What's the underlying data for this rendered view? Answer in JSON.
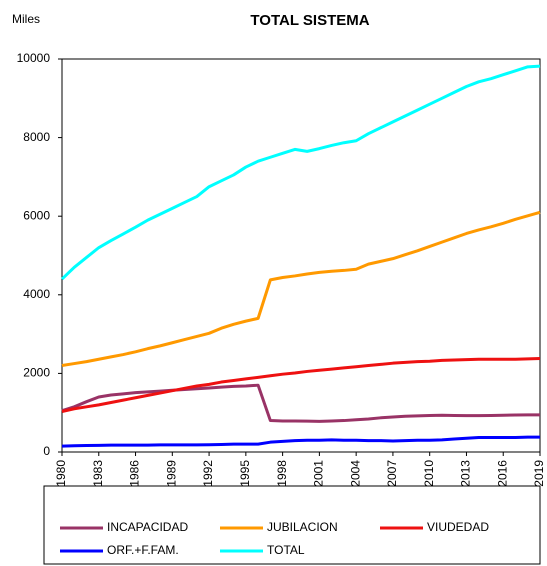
{
  "chart_data": {
    "type": "line",
    "title": "TOTAL SISTEMA",
    "y_label": "Miles",
    "x": [
      1980,
      1981,
      1982,
      1983,
      1984,
      1985,
      1986,
      1987,
      1988,
      1989,
      1990,
      1991,
      1992,
      1993,
      1994,
      1995,
      1996,
      1997,
      1998,
      1999,
      2000,
      2001,
      2002,
      2003,
      2004,
      2005,
      2006,
      2007,
      2008,
      2009,
      2010,
      2011,
      2012,
      2013,
      2014,
      2015,
      2016,
      2017,
      2018,
      2019
    ],
    "xlim": [
      1980,
      2019
    ],
    "xticks": [
      1980,
      1983,
      1986,
      1989,
      1992,
      1995,
      1998,
      2001,
      2004,
      2007,
      2010,
      2013,
      2016,
      2019
    ],
    "ylim": [
      0,
      10000
    ],
    "yticks": [
      0,
      2000,
      4000,
      6000,
      8000,
      10000
    ],
    "grid": false,
    "legend": "bottom",
    "series": [
      {
        "name": "INCAPACIDAD",
        "color": "#993366",
        "values": [
          1050,
          1150,
          1280,
          1400,
          1450,
          1480,
          1510,
          1530,
          1550,
          1570,
          1590,
          1610,
          1630,
          1650,
          1670,
          1680,
          1700,
          800,
          790,
          790,
          785,
          780,
          790,
          800,
          820,
          840,
          870,
          890,
          910,
          920,
          930,
          935,
          930,
          925,
          925,
          930,
          935,
          940,
          945,
          945
        ]
      },
      {
        "name": "JUBILACION",
        "color": "#ff9900",
        "values": [
          2200,
          2250,
          2300,
          2360,
          2420,
          2480,
          2550,
          2630,
          2700,
          2780,
          2860,
          2940,
          3020,
          3150,
          3250,
          3330,
          3400,
          4380,
          4440,
          4480,
          4530,
          4570,
          4600,
          4620,
          4650,
          4780,
          4850,
          4920,
          5020,
          5120,
          5230,
          5340,
          5450,
          5560,
          5650,
          5730,
          5820,
          5920,
          6010,
          6100
        ]
      },
      {
        "name": "VIUDEDAD",
        "color": "#ee1111",
        "values": [
          1030,
          1100,
          1150,
          1200,
          1260,
          1320,
          1380,
          1440,
          1500,
          1560,
          1620,
          1680,
          1720,
          1780,
          1820,
          1860,
          1900,
          1940,
          1980,
          2010,
          2050,
          2080,
          2110,
          2140,
          2170,
          2200,
          2230,
          2260,
          2280,
          2300,
          2310,
          2330,
          2340,
          2350,
          2360,
          2360,
          2360,
          2360,
          2370,
          2380
        ]
      },
      {
        "name": "ORF.+F.FAM.",
        "color": "#0000ff",
        "values": [
          150,
          160,
          165,
          170,
          175,
          175,
          175,
          175,
          180,
          180,
          180,
          180,
          185,
          190,
          200,
          200,
          200,
          250,
          270,
          290,
          300,
          300,
          310,
          300,
          300,
          290,
          290,
          280,
          290,
          300,
          300,
          310,
          330,
          350,
          370,
          370,
          370,
          370,
          380,
          380
        ]
      },
      {
        "name": "TOTAL",
        "color": "#00ffff",
        "values": [
          4400,
          4700,
          4950,
          5200,
          5380,
          5550,
          5720,
          5900,
          6050,
          6200,
          6350,
          6500,
          6750,
          6900,
          7050,
          7250,
          7400,
          7500,
          7600,
          7700,
          7650,
          7720,
          7800,
          7870,
          7920,
          8100,
          8250,
          8400,
          8550,
          8700,
          8850,
          9000,
          9150,
          9300,
          9420,
          9500,
          9600,
          9700,
          9800,
          9820
        ]
      }
    ]
  }
}
